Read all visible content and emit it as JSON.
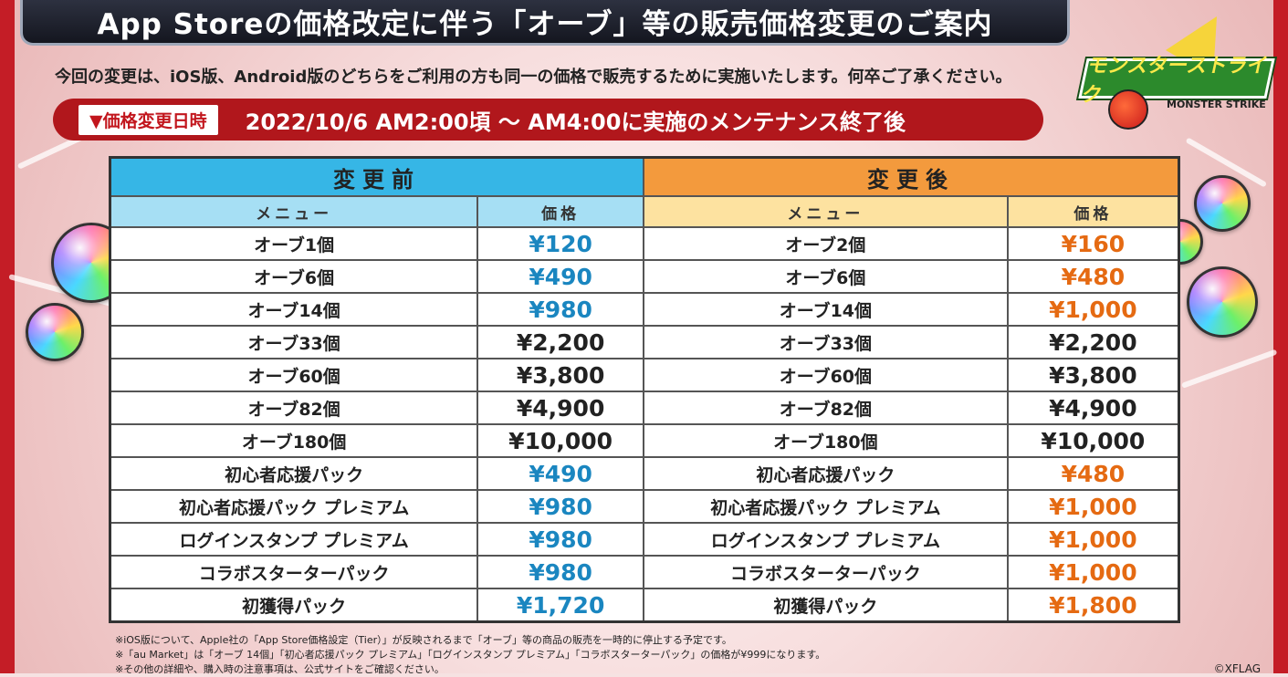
{
  "header": {
    "title": "App Storeの価格改定に伴う「オーブ」等の販売価格変更のご案内"
  },
  "intro": "今回の変更は、iOS版、Android版のどちらをご利用の方も同一の価格で販売するために実施いたします。何卒ご了承ください。",
  "date": {
    "label": "▼価格変更日時",
    "text": "2022/10/6 AM2:00頃 〜 AM4:00に実施のメンテナンス終了後"
  },
  "logo": {
    "text": "モンスターストライク",
    "subtext": "MONSTER STRIKE"
  },
  "table": {
    "before_header": "変更前",
    "after_header": "変更後",
    "menu_header": "メニュー",
    "price_header": "価格",
    "rows": [
      {
        "before_menu": "オーブ1個",
        "before_price": "¥120",
        "after_menu": "オーブ2個",
        "after_price": "¥160"
      },
      {
        "before_menu": "オーブ6個",
        "before_price": "¥490",
        "after_menu": "オーブ6個",
        "after_price": "¥480"
      },
      {
        "before_menu": "オーブ14個",
        "before_price": "¥980",
        "after_menu": "オーブ14個",
        "after_price": "¥1,000"
      },
      {
        "before_menu": "オーブ33個",
        "before_price": "¥2,200",
        "after_menu": "オーブ33個",
        "after_price": "¥2,200"
      },
      {
        "before_menu": "オーブ60個",
        "before_price": "¥3,800",
        "after_menu": "オーブ60個",
        "after_price": "¥3,800"
      },
      {
        "before_menu": "オーブ82個",
        "before_price": "¥4,900",
        "after_menu": "オーブ82個",
        "after_price": "¥4,900"
      },
      {
        "before_menu": "オーブ180個",
        "before_price": "¥10,000",
        "after_menu": "オーブ180個",
        "after_price": "¥10,000"
      },
      {
        "before_menu": "初心者応援パック",
        "before_price": "¥490",
        "after_menu": "初心者応援パック",
        "after_price": "¥480"
      },
      {
        "before_menu": "初心者応援パック プレミアム",
        "before_price": "¥980",
        "after_menu": "初心者応援パック プレミアム",
        "after_price": "¥1,000"
      },
      {
        "before_menu": "ログインスタンプ プレミアム",
        "before_price": "¥980",
        "after_menu": "ログインスタンプ プレミアム",
        "after_price": "¥1,000"
      },
      {
        "before_menu": "コラボスターターパック",
        "before_price": "¥980",
        "after_menu": "コラボスターターパック",
        "after_price": "¥1,000"
      },
      {
        "before_menu": "初獲得パック",
        "before_price": "¥1,720",
        "after_menu": "初獲得パック",
        "after_price": "¥1,800"
      }
    ]
  },
  "notes": [
    "※iOS版について、Apple社の「App Store価格設定（Tier）」が反映されるまで「オーブ」等の商品の販売を一時的に停止する予定です。",
    "※「au Market」は「オーブ 14個」「初心者応援パック プレミアム」「ログインスタンプ プレミアム」「コラボスターターパック」の価格が¥999になります。",
    "※その他の詳細や、購入時の注意事項は、公式サイトをご確認ください。"
  ],
  "copyright": "©XFLAG",
  "colors": {
    "before_header": "#36b6e6",
    "after_header": "#f39a3d",
    "before_price": "#1a86c0",
    "after_price": "#e56a12",
    "date_bar": "#b1171c"
  }
}
